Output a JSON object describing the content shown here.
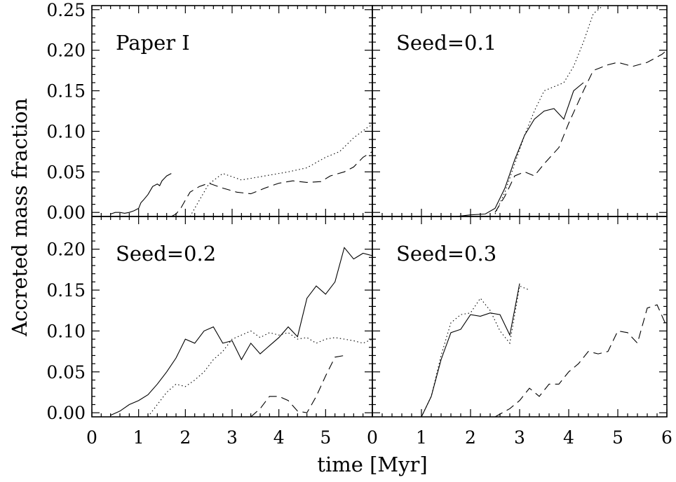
{
  "chart_data": {
    "type": "line",
    "xlabel": "time [Myr]",
    "ylabel": "Accreted mass fraction",
    "x_ticks_left": [
      "0",
      "1",
      "2",
      "3",
      "4",
      "5"
    ],
    "x_ticks_right": [
      "0",
      "1",
      "2",
      "3",
      "4",
      "5",
      "6"
    ],
    "y_ticks_top": [
      "0.00",
      "0.05",
      "0.10",
      "0.15",
      "0.20",
      "0.25"
    ],
    "y_ticks_bottom": [
      "0.00",
      "0.05",
      "0.10",
      "0.15",
      "0.20"
    ],
    "panels": [
      {
        "label": "Paper I",
        "xlim": [
          0,
          6
        ],
        "ylim": [
          -0.005,
          0.255
        ],
        "series": [
          {
            "style": "solid",
            "x": [
              0.4,
              0.5,
              0.6,
              0.7,
              0.8,
              0.9,
              1.0,
              1.05,
              1.1,
              1.2,
              1.3,
              1.4,
              1.45,
              1.5,
              1.6,
              1.7
            ],
            "y": [
              -0.002,
              0.0,
              0.0,
              -0.001,
              0.0,
              0.002,
              0.005,
              0.012,
              0.015,
              0.022,
              0.032,
              0.035,
              0.033,
              0.039,
              0.045,
              0.048
            ]
          },
          {
            "style": "dashed",
            "x": [
              1.7,
              1.8,
              1.9,
              2.0,
              2.1,
              2.3,
              2.5,
              2.8,
              3.1,
              3.4,
              3.7,
              4.0,
              4.3,
              4.6,
              4.9,
              5.1,
              5.4,
              5.6,
              5.8,
              6.0
            ],
            "y": [
              -0.005,
              -0.002,
              0.005,
              0.015,
              0.025,
              0.032,
              0.036,
              0.03,
              0.025,
              0.023,
              0.03,
              0.036,
              0.039,
              0.037,
              0.038,
              0.045,
              0.05,
              0.056,
              0.068,
              0.075
            ]
          },
          {
            "style": "dotted",
            "x": [
              2.1,
              2.3,
              2.5,
              2.8,
              3.2,
              3.7,
              4.2,
              4.6,
              5.0,
              5.3,
              5.6,
              5.9,
              6.0
            ],
            "y": [
              -0.005,
              0.015,
              0.035,
              0.048,
              0.04,
              0.045,
              0.05,
              0.055,
              0.068,
              0.075,
              0.092,
              0.105,
              0.108
            ]
          }
        ]
      },
      {
        "label": "Seed=0.1",
        "xlim": [
          0,
          6
        ],
        "ylim": [
          -0.005,
          0.255
        ],
        "series": [
          {
            "style": "solid",
            "x": [
              0.0,
              1.7,
              2.0,
              2.3,
              2.5,
              2.7,
              2.9,
              3.1,
              3.3,
              3.5,
              3.7,
              3.9,
              4.1,
              4.3
            ],
            "y": [
              -0.005,
              -0.005,
              -0.003,
              -0.002,
              0.005,
              0.03,
              0.065,
              0.095,
              0.115,
              0.125,
              0.128,
              0.115,
              0.15,
              0.16
            ]
          },
          {
            "style": "dashed",
            "x": [
              2.5,
              2.7,
              2.9,
              3.1,
              3.3,
              3.5,
              3.8,
              4.0,
              4.3,
              4.5,
              4.8,
              5.0,
              5.3,
              5.6,
              5.9,
              6.0
            ],
            "y": [
              0.0,
              0.02,
              0.045,
              0.05,
              0.045,
              0.06,
              0.08,
              0.11,
              0.15,
              0.175,
              0.182,
              0.185,
              0.18,
              0.185,
              0.195,
              0.2
            ]
          },
          {
            "style": "dotted",
            "x": [
              2.5,
              2.7,
              2.9,
              3.1,
              3.3,
              3.5,
              3.7,
              3.9,
              4.1,
              4.3,
              4.5,
              4.7
            ],
            "y": [
              -0.002,
              0.025,
              0.06,
              0.095,
              0.125,
              0.15,
              0.155,
              0.16,
              0.18,
              0.21,
              0.245,
              0.255
            ]
          }
        ]
      },
      {
        "label": "Seed=0.2",
        "xlim": [
          0,
          6
        ],
        "ylim": [
          -0.005,
          0.24
        ],
        "series": [
          {
            "style": "solid",
            "x": [
              0.4,
              0.6,
              0.8,
              1.0,
              1.2,
              1.4,
              1.6,
              1.8,
              2.0,
              2.2,
              2.4,
              2.6,
              2.8,
              3.0,
              3.2,
              3.4,
              3.6,
              3.8,
              4.0,
              4.2,
              4.4,
              4.6,
              4.8,
              5.0,
              5.2,
              5.4,
              5.6,
              5.8,
              6.0
            ],
            "y": [
              -0.003,
              0.002,
              0.01,
              0.015,
              0.022,
              0.035,
              0.05,
              0.067,
              0.09,
              0.085,
              0.1,
              0.105,
              0.085,
              0.088,
              0.065,
              0.085,
              0.072,
              0.082,
              0.092,
              0.105,
              0.093,
              0.14,
              0.155,
              0.145,
              0.16,
              0.202,
              0.188,
              0.195,
              0.192
            ]
          },
          {
            "style": "dashed",
            "x": [
              3.4,
              3.6,
              3.8,
              4.0,
              4.2,
              4.4,
              4.6,
              4.8,
              5.0,
              5.2,
              5.4
            ],
            "y": [
              -0.005,
              0.005,
              0.02,
              0.02,
              0.015,
              0.002,
              0.0,
              0.02,
              0.045,
              0.068,
              0.07
            ]
          },
          {
            "style": "dotted",
            "x": [
              1.2,
              1.4,
              1.6,
              1.8,
              2.0,
              2.2,
              2.4,
              2.6,
              2.8,
              3.0,
              3.2,
              3.4,
              3.6,
              3.8,
              4.0,
              4.2,
              4.4,
              4.6,
              4.8,
              5.0,
              5.2,
              5.4,
              5.6,
              5.8,
              6.0
            ],
            "y": [
              -0.005,
              0.01,
              0.025,
              0.035,
              0.032,
              0.04,
              0.05,
              0.065,
              0.075,
              0.09,
              0.095,
              0.1,
              0.092,
              0.098,
              0.095,
              0.098,
              0.09,
              0.092,
              0.085,
              0.09,
              0.092,
              0.09,
              0.088,
              0.085,
              0.09
            ]
          }
        ]
      },
      {
        "label": "Seed=0.3",
        "xlim": [
          0,
          6
        ],
        "ylim": [
          -0.005,
          0.24
        ],
        "series": [
          {
            "style": "solid",
            "x": [
              0.0,
              1.0,
              1.2,
              1.4,
              1.6,
              1.8,
              2.0,
              2.2,
              2.4,
              2.6,
              2.8,
              3.0
            ],
            "y": [
              -0.005,
              -0.005,
              0.02,
              0.065,
              0.098,
              0.102,
              0.12,
              0.118,
              0.122,
              0.12,
              0.095,
              0.158
            ]
          },
          {
            "style": "dashed",
            "x": [
              2.5,
              2.8,
              3.0,
              3.2,
              3.4,
              3.6,
              3.8,
              4.0,
              4.2,
              4.4,
              4.6,
              4.8,
              5.0,
              5.2,
              5.4,
              5.6,
              5.8,
              6.0
            ],
            "y": [
              -0.005,
              0.005,
              0.015,
              0.03,
              0.02,
              0.035,
              0.035,
              0.05,
              0.06,
              0.075,
              0.072,
              0.075,
              0.1,
              0.098,
              0.085,
              0.128,
              0.132,
              0.105
            ]
          },
          {
            "style": "dotted",
            "x": [
              1.0,
              1.2,
              1.4,
              1.6,
              1.8,
              2.0,
              2.2,
              2.4,
              2.6,
              2.8,
              3.0,
              3.2
            ],
            "y": [
              -0.005,
              0.02,
              0.07,
              0.11,
              0.12,
              0.122,
              0.14,
              0.125,
              0.1,
              0.085,
              0.155,
              0.15
            ]
          }
        ]
      }
    ]
  }
}
